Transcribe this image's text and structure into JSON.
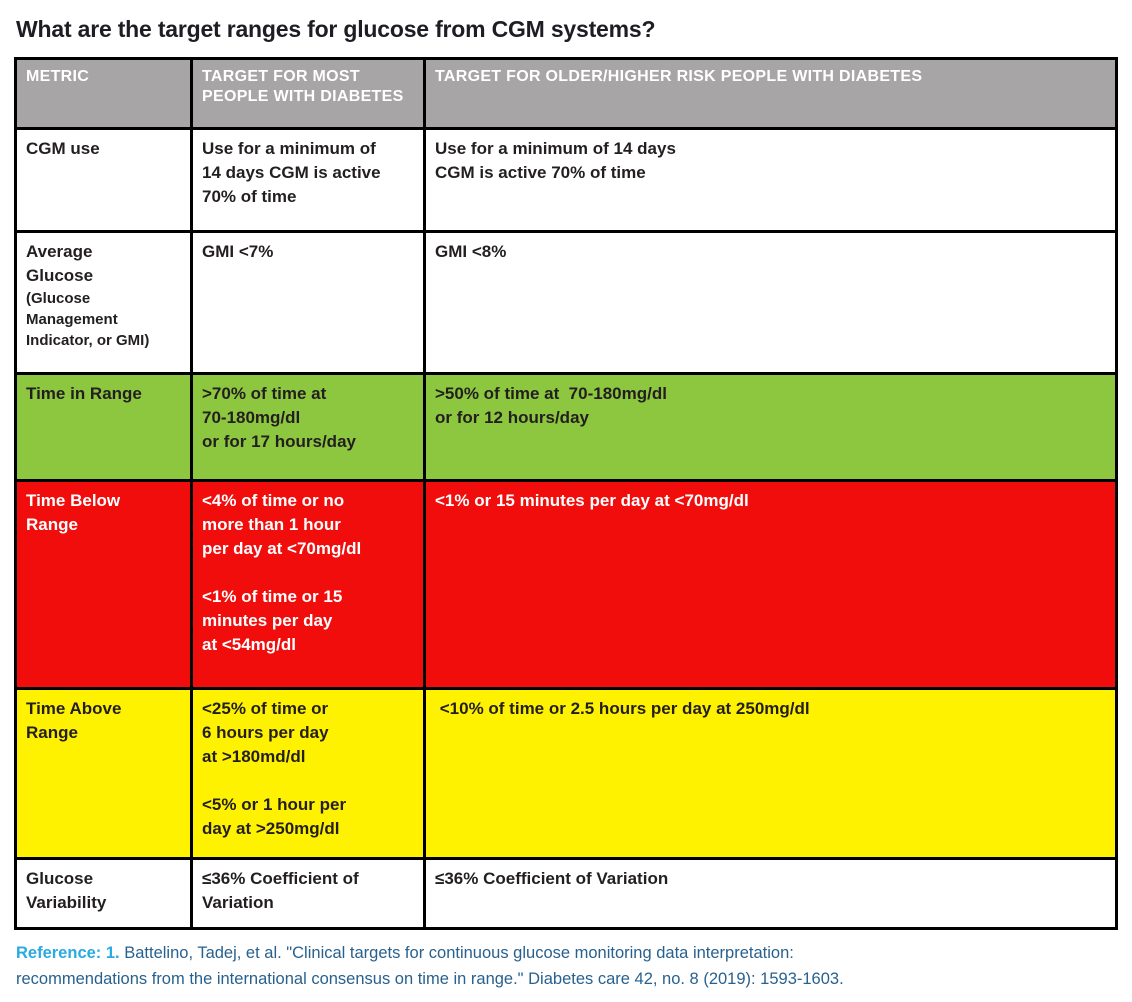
{
  "page": {
    "title": "What are the target ranges for glucose from CGM systems?"
  },
  "colors": {
    "header_bg": "#a7a5a6",
    "header_text": "#ffffff",
    "row_default_bg": "#ffffff",
    "row_green_bg": "#8dc63f",
    "row_red_bg": "#f20d0d",
    "row_yellow_bg": "#fff200",
    "cell_text_dark": "#231f20",
    "cell_text_light": "#ffffff",
    "border": "#000000",
    "reference_label": "#29abe2",
    "reference_text": "#28618e"
  },
  "table": {
    "headers": [
      "METRIC",
      "TARGET FOR MOST PEOPLE WITH DIABETES",
      "TARGET FOR OLDER/HIGHER RISK PEOPLE WITH DIABETES"
    ],
    "rows": [
      {
        "metric": "CGM use",
        "metric_sub": "",
        "most": "Use for a minimum of\n14 days CGM is active\n70% of time",
        "older": "Use for a minimum of 14 days\nCGM is active 70% of time",
        "bg": "#ffffff",
        "fg": "#231f20"
      },
      {
        "metric": "Average\nGlucose",
        "metric_sub": "(Glucose\nManagement\nIndicator, or GMI)",
        "most": "GMI <7%",
        "older": "GMI <8%",
        "bg": "#ffffff",
        "fg": "#231f20"
      },
      {
        "metric": "Time in Range",
        "metric_sub": "",
        "most": ">70% of time at\n70-180mg/dl\nor for 17 hours/day",
        "older": ">50% of time at  70-180mg/dl\nor for 12 hours/day",
        "bg": "#8dc63f",
        "fg": "#231f20"
      },
      {
        "metric": "Time Below\nRange",
        "metric_sub": "",
        "most": "<4% of time or no\nmore than 1 hour\nper day at <70mg/dl\n\n<1% of time or 15\nminutes per day\nat <54mg/dl",
        "older": "<1% or 15 minutes per day at <70mg/dl",
        "bg": "#f20d0d",
        "fg": "#ffffff"
      },
      {
        "metric": "Time Above\nRange",
        "metric_sub": "",
        "most": "<25% of time or\n6 hours per day\nat >180md/dl\n\n<5% or 1 hour per\nday at >250mg/dl",
        "older": " <10% of time or 2.5 hours per day at 250mg/dl",
        "bg": "#fff200",
        "fg": "#231f20"
      },
      {
        "metric": "Glucose\nVariability",
        "metric_sub": "",
        "most": "≤36% Coefficient of\nVariation",
        "older": "≤36% Coefficient of Variation",
        "bg": "#ffffff",
        "fg": "#231f20"
      }
    ]
  },
  "reference": {
    "label": "Reference: 1.",
    "text": "Battelino, Tadej, et al. \"Clinical targets for continuous glucose monitoring data interpretation:\nrecommendations from the international consensus on time in range.\" Diabetes care 42, no. 8 (2019): 1593-1603."
  }
}
